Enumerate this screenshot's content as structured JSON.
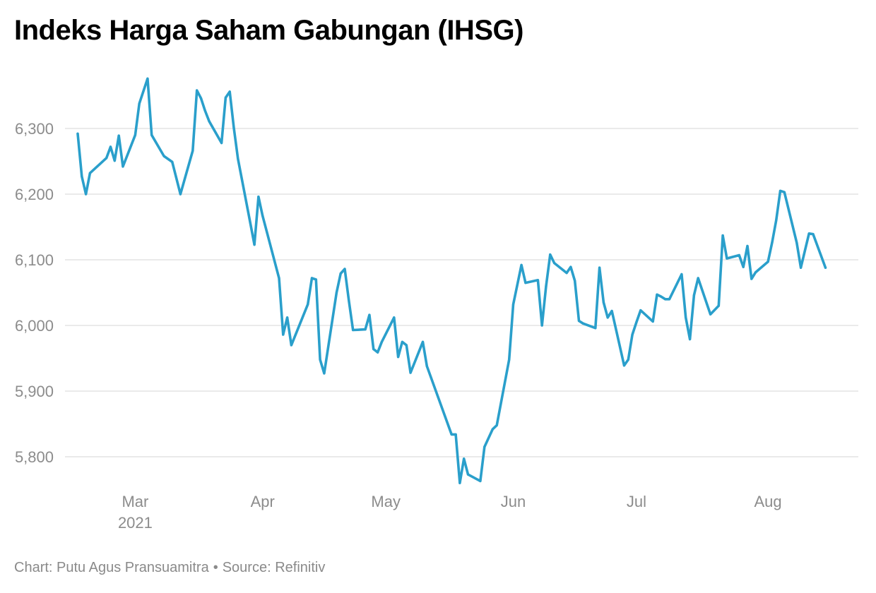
{
  "title": "Indeks Harga Saham Gabungan (IHSG)",
  "footer": {
    "credit": "Chart: Putu Agus Pransuamitra",
    "separator": "•",
    "source": "Source: Refinitiv"
  },
  "colors": {
    "line": "#2a9fcb",
    "grid": "#e3e3e3",
    "tick_text": "#8c8c8c",
    "title": "#000000"
  },
  "chart_data": {
    "type": "line",
    "title": "Indeks Harga Saham Gabungan (IHSG)",
    "xlabel": "",
    "ylabel": "",
    "grid": true,
    "legend": "none",
    "xlim": [
      "2021-02-15",
      "2021-08-24"
    ],
    "ylim": [
      5750,
      6400
    ],
    "y_ticks": [
      5800,
      5900,
      6000,
      6100,
      6200,
      6300
    ],
    "y_tick_labels": [
      "5,800",
      "5,900",
      "6,000",
      "6,100",
      "6,200",
      "6,300"
    ],
    "x_ticks": [
      {
        "date": "2021-03-01",
        "label": "Mar",
        "sublabel": "2021"
      },
      {
        "date": "2021-04-01",
        "label": "Apr",
        "sublabel": ""
      },
      {
        "date": "2021-05-01",
        "label": "May",
        "sublabel": ""
      },
      {
        "date": "2021-06-01",
        "label": "Jun",
        "sublabel": ""
      },
      {
        "date": "2021-07-01",
        "label": "Jul",
        "sublabel": ""
      },
      {
        "date": "2021-08-02",
        "label": "Aug",
        "sublabel": ""
      }
    ],
    "series": [
      {
        "values": [
          [
            "2021-02-15",
            6292
          ],
          [
            "2021-02-16",
            6227
          ],
          [
            "2021-02-17",
            6200
          ],
          [
            "2021-02-18",
            6232
          ],
          [
            "2021-02-22",
            6255
          ],
          [
            "2021-02-23",
            6272
          ],
          [
            "2021-02-24",
            6251
          ],
          [
            "2021-02-25",
            6289
          ],
          [
            "2021-02-26",
            6242
          ],
          [
            "2021-03-01",
            6290
          ],
          [
            "2021-03-02",
            6338
          ],
          [
            "2021-03-04",
            6376
          ],
          [
            "2021-03-05",
            6290
          ],
          [
            "2021-03-08",
            6258
          ],
          [
            "2021-03-10",
            6249
          ],
          [
            "2021-03-12",
            6200
          ],
          [
            "2021-03-15",
            6266
          ],
          [
            "2021-03-16",
            6358
          ],
          [
            "2021-03-17",
            6346
          ],
          [
            "2021-03-18",
            6327
          ],
          [
            "2021-03-19",
            6311
          ],
          [
            "2021-03-22",
            6278
          ],
          [
            "2021-03-23",
            6347
          ],
          [
            "2021-03-24",
            6356
          ],
          [
            "2021-03-25",
            6301
          ],
          [
            "2021-03-26",
            6254
          ],
          [
            "2021-03-29",
            6156
          ],
          [
            "2021-03-30",
            6123
          ],
          [
            "2021-03-31",
            6196
          ],
          [
            "2021-04-01",
            6167
          ],
          [
            "2021-04-05",
            6072
          ],
          [
            "2021-04-06",
            5986
          ],
          [
            "2021-04-07",
            6012
          ],
          [
            "2021-04-08",
            5970
          ],
          [
            "2021-04-12",
            6032
          ],
          [
            "2021-04-13",
            6072
          ],
          [
            "2021-04-14",
            6070
          ],
          [
            "2021-04-15",
            5948
          ],
          [
            "2021-04-16",
            5927
          ],
          [
            "2021-04-19",
            6050
          ],
          [
            "2021-04-20",
            6079
          ],
          [
            "2021-04-21",
            6086
          ],
          [
            "2021-04-22",
            6038
          ],
          [
            "2021-04-23",
            5993
          ],
          [
            "2021-04-26",
            5994
          ],
          [
            "2021-04-27",
            6016
          ],
          [
            "2021-04-28",
            5964
          ],
          [
            "2021-04-29",
            5959
          ],
          [
            "2021-04-30",
            5975
          ],
          [
            "2021-05-03",
            6012
          ],
          [
            "2021-05-04",
            5952
          ],
          [
            "2021-05-05",
            5975
          ],
          [
            "2021-05-06",
            5970
          ],
          [
            "2021-05-07",
            5928
          ],
          [
            "2021-05-10",
            5975
          ],
          [
            "2021-05-11",
            5938
          ],
          [
            "2021-05-17",
            5834
          ],
          [
            "2021-05-18",
            5834
          ],
          [
            "2021-05-19",
            5760
          ],
          [
            "2021-05-20",
            5797
          ],
          [
            "2021-05-21",
            5773
          ],
          [
            "2021-05-24",
            5763
          ],
          [
            "2021-05-25",
            5815
          ],
          [
            "2021-05-27",
            5842
          ],
          [
            "2021-05-28",
            5848
          ],
          [
            "2021-05-31",
            5948
          ],
          [
            "2021-06-01",
            6032
          ],
          [
            "2021-06-03",
            6092
          ],
          [
            "2021-06-04",
            6065
          ],
          [
            "2021-06-07",
            6069
          ],
          [
            "2021-06-08",
            6000
          ],
          [
            "2021-06-09",
            6060
          ],
          [
            "2021-06-10",
            6108
          ],
          [
            "2021-06-11",
            6095
          ],
          [
            "2021-06-14",
            6080
          ],
          [
            "2021-06-15",
            6089
          ],
          [
            "2021-06-16",
            6068
          ],
          [
            "2021-06-17",
            6007
          ],
          [
            "2021-06-18",
            6003
          ],
          [
            "2021-06-21",
            5996
          ],
          [
            "2021-06-22",
            6088
          ],
          [
            "2021-06-23",
            6035
          ],
          [
            "2021-06-24",
            6012
          ],
          [
            "2021-06-25",
            6022
          ],
          [
            "2021-06-28",
            5939
          ],
          [
            "2021-06-29",
            5948
          ],
          [
            "2021-06-30",
            5986
          ],
          [
            "2021-07-01",
            6005
          ],
          [
            "2021-07-02",
            6023
          ],
          [
            "2021-07-05",
            6006
          ],
          [
            "2021-07-06",
            6047
          ],
          [
            "2021-07-07",
            6044
          ],
          [
            "2021-07-08",
            6040
          ],
          [
            "2021-07-09",
            6040
          ],
          [
            "2021-07-12",
            6078
          ],
          [
            "2021-07-13",
            6012
          ],
          [
            "2021-07-14",
            5979
          ],
          [
            "2021-07-15",
            6046
          ],
          [
            "2021-07-16",
            6072
          ],
          [
            "2021-07-19",
            6017
          ],
          [
            "2021-07-21",
            6030
          ],
          [
            "2021-07-22",
            6137
          ],
          [
            "2021-07-23",
            6102
          ],
          [
            "2021-07-26",
            6107
          ],
          [
            "2021-07-27",
            6089
          ],
          [
            "2021-07-28",
            6121
          ],
          [
            "2021-07-29",
            6071
          ],
          [
            "2021-07-30",
            6081
          ],
          [
            "2021-08-02",
            6097
          ],
          [
            "2021-08-03",
            6126
          ],
          [
            "2021-08-04",
            6160
          ],
          [
            "2021-08-05",
            6205
          ],
          [
            "2021-08-06",
            6203
          ],
          [
            "2021-08-09",
            6126
          ],
          [
            "2021-08-10",
            6088
          ],
          [
            "2021-08-12",
            6140
          ],
          [
            "2021-08-13",
            6139
          ],
          [
            "2021-08-16",
            6088
          ]
        ]
      }
    ]
  }
}
